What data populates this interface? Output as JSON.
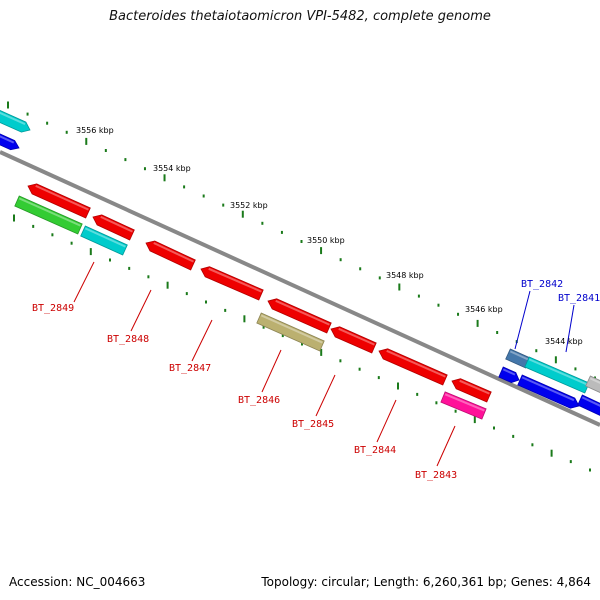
{
  "title": "Bacteroides thetaiotaomicron VPI-5482, complete genome",
  "footer": {
    "accession": "Accession: NC_004663",
    "summary": "Topology: circular; Length: 6,260,361 bp; Genes: 4,864"
  },
  "colors": {
    "backbone": "#888888",
    "tick": "#1a7a1a",
    "label_red": "#cc0000",
    "label_blue": "#0000cc"
  },
  "ruler_labels": [
    "3556 kbp",
    "3554 kbp",
    "3552 kbp",
    "3550 kbp",
    "3548 kbp",
    "3546 kbp",
    "3544 kbp"
  ],
  "gene_labels": [
    {
      "text": "BT_2849",
      "color": "red"
    },
    {
      "text": "BT_2848",
      "color": "red"
    },
    {
      "text": "BT_2847",
      "color": "red"
    },
    {
      "text": "BT_2846",
      "color": "red"
    },
    {
      "text": "BT_2845",
      "color": "red"
    },
    {
      "text": "BT_2844",
      "color": "red"
    },
    {
      "text": "BT_2843",
      "color": "red"
    },
    {
      "text": "BT_2842",
      "color": "blue"
    },
    {
      "text": "BT_2841",
      "color": "blue"
    }
  ],
  "features": [
    {
      "color": "#00cccc"
    },
    {
      "color": "#0000ee"
    },
    {
      "color": "#ee0000"
    },
    {
      "color": "#ee0000"
    },
    {
      "color": "#ee0000"
    },
    {
      "color": "#ee0000"
    },
    {
      "color": "#ee0000"
    },
    {
      "color": "#ee0000"
    },
    {
      "color": "#ee0000"
    },
    {
      "color": "#ee0000"
    },
    {
      "color": "#33cc33"
    },
    {
      "color": "#00cccc"
    },
    {
      "color": "#bbb070"
    },
    {
      "color": "#ff1199"
    },
    {
      "color": "#4477aa"
    },
    {
      "color": "#00cccc"
    },
    {
      "color": "#bbbbbb"
    },
    {
      "color": "#0000ee"
    },
    {
      "color": "#0000ee"
    },
    {
      "color": "#0000ee"
    }
  ]
}
